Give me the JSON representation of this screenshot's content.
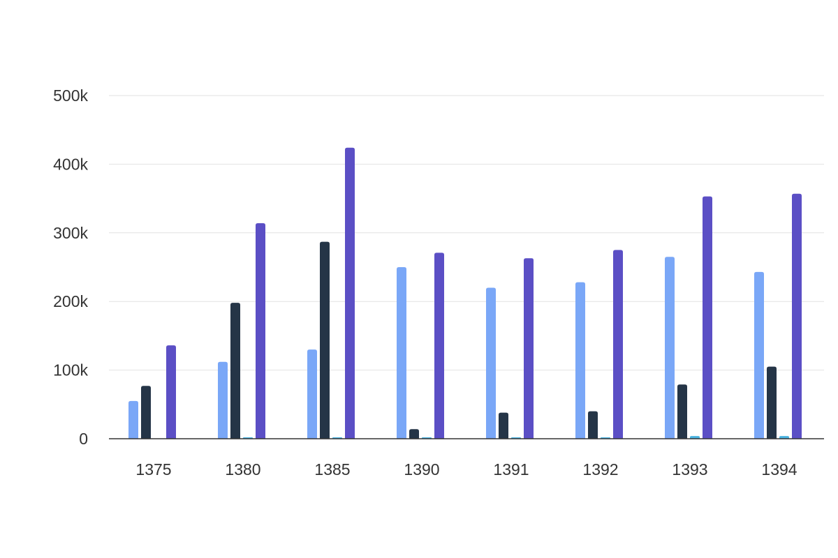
{
  "chart_data": {
    "type": "bar",
    "categories": [
      "1375",
      "1380",
      "1385",
      "1390",
      "1391",
      "1392",
      "1393",
      "1394"
    ],
    "series": [
      {
        "values": [
          55000,
          112000,
          130000,
          250000,
          220000,
          228000,
          265000,
          243000
        ]
      },
      {
        "values": [
          77000,
          198000,
          287000,
          14000,
          38000,
          40000,
          79000,
          105000
        ]
      },
      {
        "values": [
          0,
          2000,
          2000,
          2000,
          2000,
          2000,
          4000,
          4000
        ]
      },
      {
        "values": [
          136000,
          314000,
          424000,
          271000,
          263000,
          275000,
          353000,
          357000
        ]
      }
    ],
    "ylim": [
      0,
      500000
    ],
    "y_ticks": [
      0,
      100000,
      200000,
      300000,
      400000,
      500000
    ],
    "y_tick_labels": [
      "0",
      "100k",
      "200k",
      "300k",
      "400k",
      "500k"
    ],
    "grid": true,
    "legend": "none",
    "colors": [
      "#7aa7f7",
      "#253547",
      "#4ab3e0",
      "#5b4fc5"
    ],
    "baseline_color": "#333333",
    "grid_color": "#e2e2e2"
  }
}
